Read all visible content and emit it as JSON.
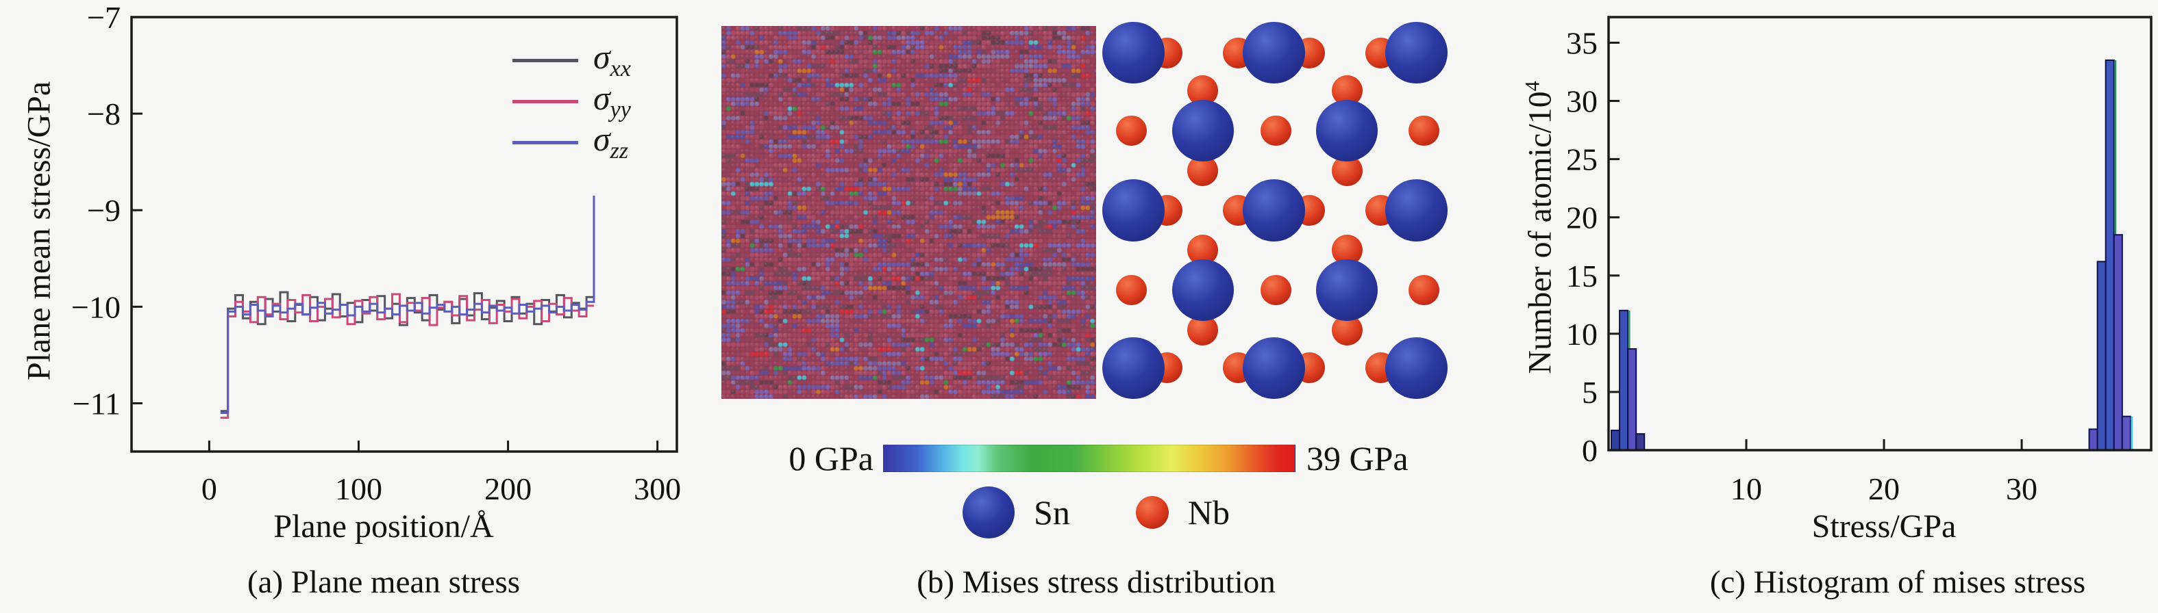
{
  "figure": {
    "captions": {
      "a": "(a) Plane mean stress",
      "b": "(b) Mises stress distribution",
      "c": "(c) Histogram of mises stress"
    }
  },
  "panel_a": {
    "ylabel": "Plane mean stress/GPa",
    "xlabel": "Plane position/Å",
    "legend": [
      {
        "symbol": "σ",
        "sub": "xx",
        "color": "#55555e"
      },
      {
        "symbol": "σ",
        "sub": "yy",
        "color": "#c94b7a"
      },
      {
        "symbol": "σ",
        "sub": "zz",
        "color": "#5d5dba"
      }
    ]
  },
  "panel_b": {
    "colorbar": {
      "min_label": "0 GPa",
      "max_label": "39 GPa",
      "stops": [
        {
          "p": 0,
          "c": "#3837a8"
        },
        {
          "p": 8,
          "c": "#3e63cc"
        },
        {
          "p": 14,
          "c": "#52aee4"
        },
        {
          "p": 19,
          "c": "#74e4e4"
        },
        {
          "p": 23,
          "c": "#8eecd0"
        },
        {
          "p": 28,
          "c": "#5cc472"
        },
        {
          "p": 36,
          "c": "#3faa42"
        },
        {
          "p": 46,
          "c": "#44b044"
        },
        {
          "p": 55,
          "c": "#86cc3c"
        },
        {
          "p": 63,
          "c": "#bce23e"
        },
        {
          "p": 70,
          "c": "#e6ee5a"
        },
        {
          "p": 77,
          "c": "#eec93a"
        },
        {
          "p": 84,
          "c": "#ee9a30"
        },
        {
          "p": 90,
          "c": "#e85c28"
        },
        {
          "p": 96,
          "c": "#e0251f"
        },
        {
          "p": 100,
          "c": "#dd1d1c"
        }
      ]
    },
    "atoms": {
      "sn_label": "Sn",
      "nb_label": "Nb",
      "sn_color": "#2c3ba4",
      "nb_color": "#dd3c1e"
    },
    "lattice": {
      "cell": 6.9,
      "seed": 42,
      "background": "#8e3d55",
      "palette": [
        {
          "c": "#a2465f",
          "w": 0.2
        },
        {
          "c": "#9a4059",
          "w": 0.18
        },
        {
          "c": "#aa4c66",
          "w": 0.14
        },
        {
          "c": "#93425c",
          "w": 0.1
        },
        {
          "c": "#6e58a4",
          "w": 0.08
        },
        {
          "c": "#7a63b0",
          "w": 0.05
        },
        {
          "c": "#5f4d98",
          "w": 0.04
        },
        {
          "c": "#74485c",
          "w": 0.07
        },
        {
          "c": "#67404f",
          "w": 0.05
        },
        {
          "c": "#8a6f9e",
          "w": 0.05
        },
        {
          "c": "#c8702c",
          "w": 0.01
        },
        {
          "c": "#3f8f4a",
          "w": 0.01
        },
        {
          "c": "#d2303a",
          "w": 0.01
        },
        {
          "c": "#52b8c8",
          "w": 0.01
        }
      ],
      "streak_probability": 0.35
    },
    "crystal": {
      "sn_diameter_pct": 16.5,
      "nb_diameter_pct": 8.2,
      "sn_positions_pct": [
        [
          8.5,
          8.5
        ],
        [
          46,
          8.5
        ],
        [
          84,
          8.5
        ],
        [
          27,
          29
        ],
        [
          65.5,
          29
        ],
        [
          8.5,
          50
        ],
        [
          46,
          50
        ],
        [
          84,
          50
        ],
        [
          27,
          71
        ],
        [
          65.5,
          71
        ],
        [
          8.5,
          91.5
        ],
        [
          46,
          91.5
        ],
        [
          84,
          91.5
        ]
      ],
      "nb_positions_pct": [
        [
          17.5,
          8.5
        ],
        [
          36.5,
          8.5
        ],
        [
          55.5,
          8.5
        ],
        [
          74.5,
          8.5
        ],
        [
          8,
          29
        ],
        [
          27,
          18.5
        ],
        [
          27,
          39.5
        ],
        [
          46.5,
          29
        ],
        [
          65.5,
          18.5
        ],
        [
          65.5,
          39.5
        ],
        [
          86,
          29
        ],
        [
          17.5,
          50
        ],
        [
          36.5,
          50
        ],
        [
          55.5,
          50
        ],
        [
          74.5,
          50
        ],
        [
          8,
          71
        ],
        [
          27,
          60.5
        ],
        [
          27,
          81.5
        ],
        [
          46.5,
          71
        ],
        [
          65.5,
          60.5
        ],
        [
          65.5,
          81.5
        ],
        [
          86,
          71
        ],
        [
          17.5,
          91.5
        ],
        [
          36.5,
          91.5
        ],
        [
          55.5,
          91.5
        ],
        [
          74.5,
          91.5
        ]
      ]
    }
  },
  "panel_c": {
    "ylabel_base": "Number of atomic/10",
    "ylabel_exp": "4",
    "xlabel": "Stress/GPa"
  },
  "chart_data": [
    {
      "type": "line",
      "title": "(a) Plane mean stress",
      "xlabel": "Plane position/Å",
      "ylabel": "Plane mean stress/GPa",
      "xlim": [
        -52,
        313
      ],
      "ylim": [
        -11.5,
        -7
      ],
      "xticks": [
        0,
        100,
        200,
        300
      ],
      "yticks": [
        -7,
        -8,
        -9,
        -10,
        -11
      ],
      "grid": false,
      "legend_position": "upper right",
      "bin_start": 7.5,
      "bin_width": 5,
      "series": [
        {
          "name": "sigma_xx",
          "color": "#55555e",
          "values": [
            -11.08,
            -10.02,
            -9.88,
            -10.12,
            -9.95,
            -10.18,
            -9.92,
            -10.05,
            -9.85,
            -10.15,
            -9.98,
            -10.08,
            -9.9,
            -10.14,
            -10.02,
            -9.87,
            -10.1,
            -9.96,
            -10.16,
            -9.93,
            -10.04,
            -9.89,
            -10.12,
            -9.97,
            -10.19,
            -9.91,
            -10.06,
            -10.14,
            -9.88,
            -10.03,
            -9.95,
            -10.17,
            -9.92,
            -10.09,
            -9.86,
            -10.13,
            -10.01,
            -9.94,
            -10.15,
            -9.9,
            -10.07,
            -9.97,
            -10.18,
            -9.93,
            -10.05,
            -9.88,
            -10.11,
            -9.96,
            -10.02,
            -9.9
          ]
        },
        {
          "name": "sigma_yy",
          "color": "#c94b7a",
          "values": [
            -11.15,
            -10.1,
            -9.95,
            -10.05,
            -10.16,
            -9.9,
            -10.08,
            -9.97,
            -10.13,
            -9.93,
            -10.06,
            -9.88,
            -10.15,
            -10.0,
            -9.92,
            -10.11,
            -9.98,
            -10.18,
            -9.94,
            -10.07,
            -9.9,
            -10.13,
            -10.02,
            -9.87,
            -10.16,
            -9.96,
            -10.04,
            -9.91,
            -10.19,
            -10.01,
            -9.95,
            -10.09,
            -9.89,
            -10.14,
            -10.03,
            -9.93,
            -10.17,
            -9.98,
            -10.05,
            -9.92,
            -10.12,
            -10.0,
            -9.94,
            -10.15,
            -9.97,
            -10.08,
            -9.91,
            -10.04,
            -10.1,
            -9.99
          ]
        },
        {
          "name": "sigma_zz",
          "color": "#5d5dba",
          "values": [
            -11.1,
            -10.05,
            -10.0,
            -10.08,
            -9.98,
            -10.04,
            -10.1,
            -9.99,
            -10.06,
            -10.02,
            -9.97,
            -10.08,
            -10.01,
            -9.96,
            -10.07,
            -10.03,
            -9.98,
            -10.09,
            -10.0,
            -10.05,
            -9.97,
            -10.06,
            -10.02,
            -10.08,
            -9.99,
            -10.04,
            -9.96,
            -10.07,
            -10.01,
            -9.98,
            -10.05,
            -10.0,
            -10.08,
            -10.03,
            -9.97,
            -10.06,
            -9.99,
            -10.04,
            -10.01,
            -10.07,
            -9.98,
            -10.05,
            -10.02,
            -9.99,
            -10.06,
            -10.0,
            -10.04,
            -9.98,
            -10.03,
            -9.95
          ],
          "spike": {
            "x": 255,
            "x_end": 257.5,
            "value": -8.85
          }
        }
      ]
    },
    {
      "type": "heatmap",
      "title": "(b) Mises stress distribution",
      "value_label_min": "0 GPa",
      "value_label_max": "39 GPa",
      "value_range_gpa": [
        0,
        39
      ],
      "species": [
        {
          "label": "Sn",
          "color": "#2c3ba4",
          "size": "large"
        },
        {
          "label": "Nb",
          "color": "#dd3c1e",
          "size": "small"
        }
      ]
    },
    {
      "type": "bar",
      "title": "(c) Histogram of mises stress",
      "xlabel": "Stress/GPa",
      "ylabel": "Number of atomic/10^4",
      "xlim": [
        0,
        39.4
      ],
      "ylim": [
        0,
        37.2
      ],
      "xticks": [
        10,
        20,
        30
      ],
      "yticks": [
        0,
        5,
        10,
        15,
        20,
        25,
        30,
        35
      ],
      "bar_width": 0.6,
      "bars": [
        {
          "x": 0.2,
          "h": 1.7,
          "c": "#2e3f9e"
        },
        {
          "x": 0.8,
          "h": 12.0,
          "c": "#3d52b8",
          "edge_right": "#3a9a6e"
        },
        {
          "x": 1.4,
          "h": 8.7,
          "c": "#5a50c0"
        },
        {
          "x": 2.0,
          "h": 1.4,
          "c": "#3a3a8e"
        },
        {
          "x": 34.9,
          "h": 1.8,
          "c": "#5a50c0"
        },
        {
          "x": 35.5,
          "h": 16.2,
          "c": "#3d52b8"
        },
        {
          "x": 36.1,
          "h": 33.5,
          "c": "#3d56c0",
          "edge_right": "#2f8f63"
        },
        {
          "x": 36.7,
          "h": 18.5,
          "c": "#5a50c0"
        },
        {
          "x": 37.3,
          "h": 2.9,
          "c": "#6058c4",
          "edge_right": "#58c8d8"
        }
      ]
    }
  ]
}
